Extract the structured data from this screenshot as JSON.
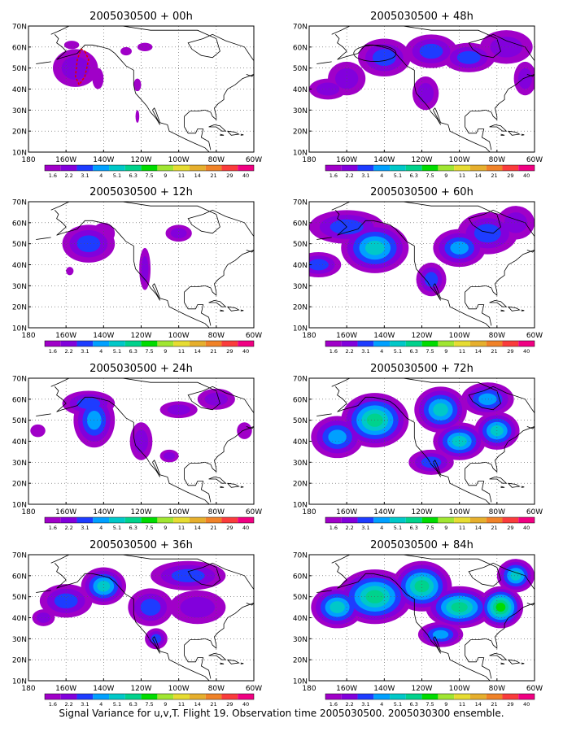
{
  "chart_data": {
    "type": "heatmap",
    "grid": "dotted",
    "map": "North America + North Pacific",
    "colorbar": {
      "labels": [
        "1.6",
        "2.2",
        "3.1",
        "4",
        "5.1",
        "6.3",
        "7.5",
        "9",
        "11",
        "14",
        "21",
        "29",
        "40"
      ],
      "colors": [
        "#a000c8",
        "#8200dc",
        "#1e3cff",
        "#00a0ff",
        "#00c8c8",
        "#00d28c",
        "#00dc00",
        "#a0e632",
        "#e6dc32",
        "#e6af2d",
        "#f08228",
        "#fa3c3c",
        "#f00082"
      ]
    },
    "x_ticks": [
      "180",
      "160W",
      "140W",
      "120W",
      "100W",
      "80W",
      "60W"
    ],
    "y_ticks": [
      "10N",
      "20N",
      "30N",
      "40N",
      "50N",
      "60N",
      "70N"
    ],
    "panels": [
      {
        "title": "2005030500 + 00h",
        "peak_level": "4",
        "blobs": [
          [
            -155,
            50,
            12,
            9,
            0.45
          ],
          [
            -143,
            45,
            3,
            5,
            0.2
          ],
          [
            -157,
            61,
            4,
            2,
            0.2
          ],
          [
            -128,
            58,
            3,
            2,
            0.2
          ],
          [
            -122,
            42,
            2,
            3,
            0.2
          ],
          [
            -122,
            27,
            1,
            3,
            0.2
          ],
          [
            -118,
            60,
            4,
            2,
            0.25
          ]
        ]
      },
      {
        "title": "2005030500 + 12h",
        "peak_level": "5.1",
        "blobs": [
          [
            -148,
            50,
            14,
            9,
            0.5
          ],
          [
            -118,
            38,
            3,
            10,
            0.3
          ],
          [
            -100,
            55,
            7,
            4,
            0.3
          ],
          [
            -140,
            55,
            6,
            5,
            0.25
          ],
          [
            -158,
            37,
            2,
            2,
            0.2
          ]
        ]
      },
      {
        "title": "2005030500 + 24h",
        "peak_level": "6.3",
        "blobs": [
          [
            -145,
            50,
            11,
            13,
            0.6
          ],
          [
            -148,
            58,
            14,
            6,
            0.45
          ],
          [
            -120,
            40,
            6,
            9,
            0.35
          ],
          [
            -100,
            55,
            10,
            4,
            0.3
          ],
          [
            -80,
            60,
            10,
            5,
            0.3
          ],
          [
            -175,
            45,
            4,
            3,
            0.2
          ],
          [
            -105,
            33,
            5,
            3,
            0.3
          ],
          [
            -65,
            45,
            4,
            4,
            0.2
          ]
        ]
      },
      {
        "title": "2005030500 + 36h",
        "peak_level": "6.3",
        "blobs": [
          [
            -140,
            55,
            12,
            9,
            0.75
          ],
          [
            -160,
            48,
            14,
            8,
            0.5
          ],
          [
            -115,
            45,
            12,
            9,
            0.5
          ],
          [
            -95,
            60,
            20,
            7,
            0.45
          ],
          [
            -112,
            30,
            6,
            5,
            0.45
          ],
          [
            -172,
            40,
            6,
            4,
            0.35
          ],
          [
            -90,
            45,
            15,
            8,
            0.3
          ]
        ]
      },
      {
        "title": "2005030500 + 48h",
        "peak_level": "5.1",
        "blobs": [
          [
            -140,
            55,
            14,
            9,
            0.6
          ],
          [
            -160,
            45,
            10,
            8,
            0.45
          ],
          [
            -115,
            58,
            14,
            8,
            0.55
          ],
          [
            -95,
            55,
            14,
            7,
            0.5
          ],
          [
            -118,
            38,
            7,
            8,
            0.45
          ],
          [
            -75,
            60,
            14,
            8,
            0.45
          ],
          [
            -65,
            45,
            6,
            8,
            0.35
          ],
          [
            -170,
            40,
            10,
            5,
            0.35
          ]
        ]
      },
      {
        "title": "2005030500 + 60h",
        "peak_level": "6.3",
        "blobs": [
          [
            -145,
            48,
            18,
            12,
            0.75
          ],
          [
            -100,
            48,
            14,
            9,
            0.65
          ],
          [
            -115,
            33,
            8,
            8,
            0.55
          ],
          [
            -160,
            58,
            20,
            8,
            0.5
          ],
          [
            -85,
            55,
            16,
            10,
            0.55
          ],
          [
            -175,
            40,
            12,
            6,
            0.45
          ],
          [
            -70,
            60,
            10,
            8,
            0.35
          ]
        ]
      },
      {
        "title": "2005030500 + 72h",
        "peak_level": "7.5",
        "blobs": [
          [
            -145,
            50,
            18,
            13,
            0.8
          ],
          [
            -110,
            55,
            14,
            11,
            0.75
          ],
          [
            -100,
            40,
            14,
            9,
            0.65
          ],
          [
            -80,
            45,
            12,
            9,
            0.65
          ],
          [
            -165,
            42,
            14,
            10,
            0.55
          ],
          [
            -115,
            30,
            12,
            6,
            0.45
          ],
          [
            -85,
            60,
            14,
            8,
            0.5
          ]
        ]
      },
      {
        "title": "2005030500 + 84h",
        "peak_level": "9",
        "blobs": [
          [
            -145,
            50,
            20,
            13,
            0.8
          ],
          [
            -100,
            45,
            18,
            10,
            0.8
          ],
          [
            -78,
            45,
            12,
            10,
            0.85
          ],
          [
            -120,
            55,
            16,
            12,
            0.7
          ],
          [
            -165,
            45,
            14,
            10,
            0.6
          ],
          [
            -110,
            32,
            12,
            6,
            0.55
          ],
          [
            -70,
            60,
            10,
            8,
            0.6
          ]
        ]
      }
    ]
  },
  "caption": "Signal Variance for u,v,T. Flight 19. Observation time 2005030500. 2005030300 ensemble."
}
